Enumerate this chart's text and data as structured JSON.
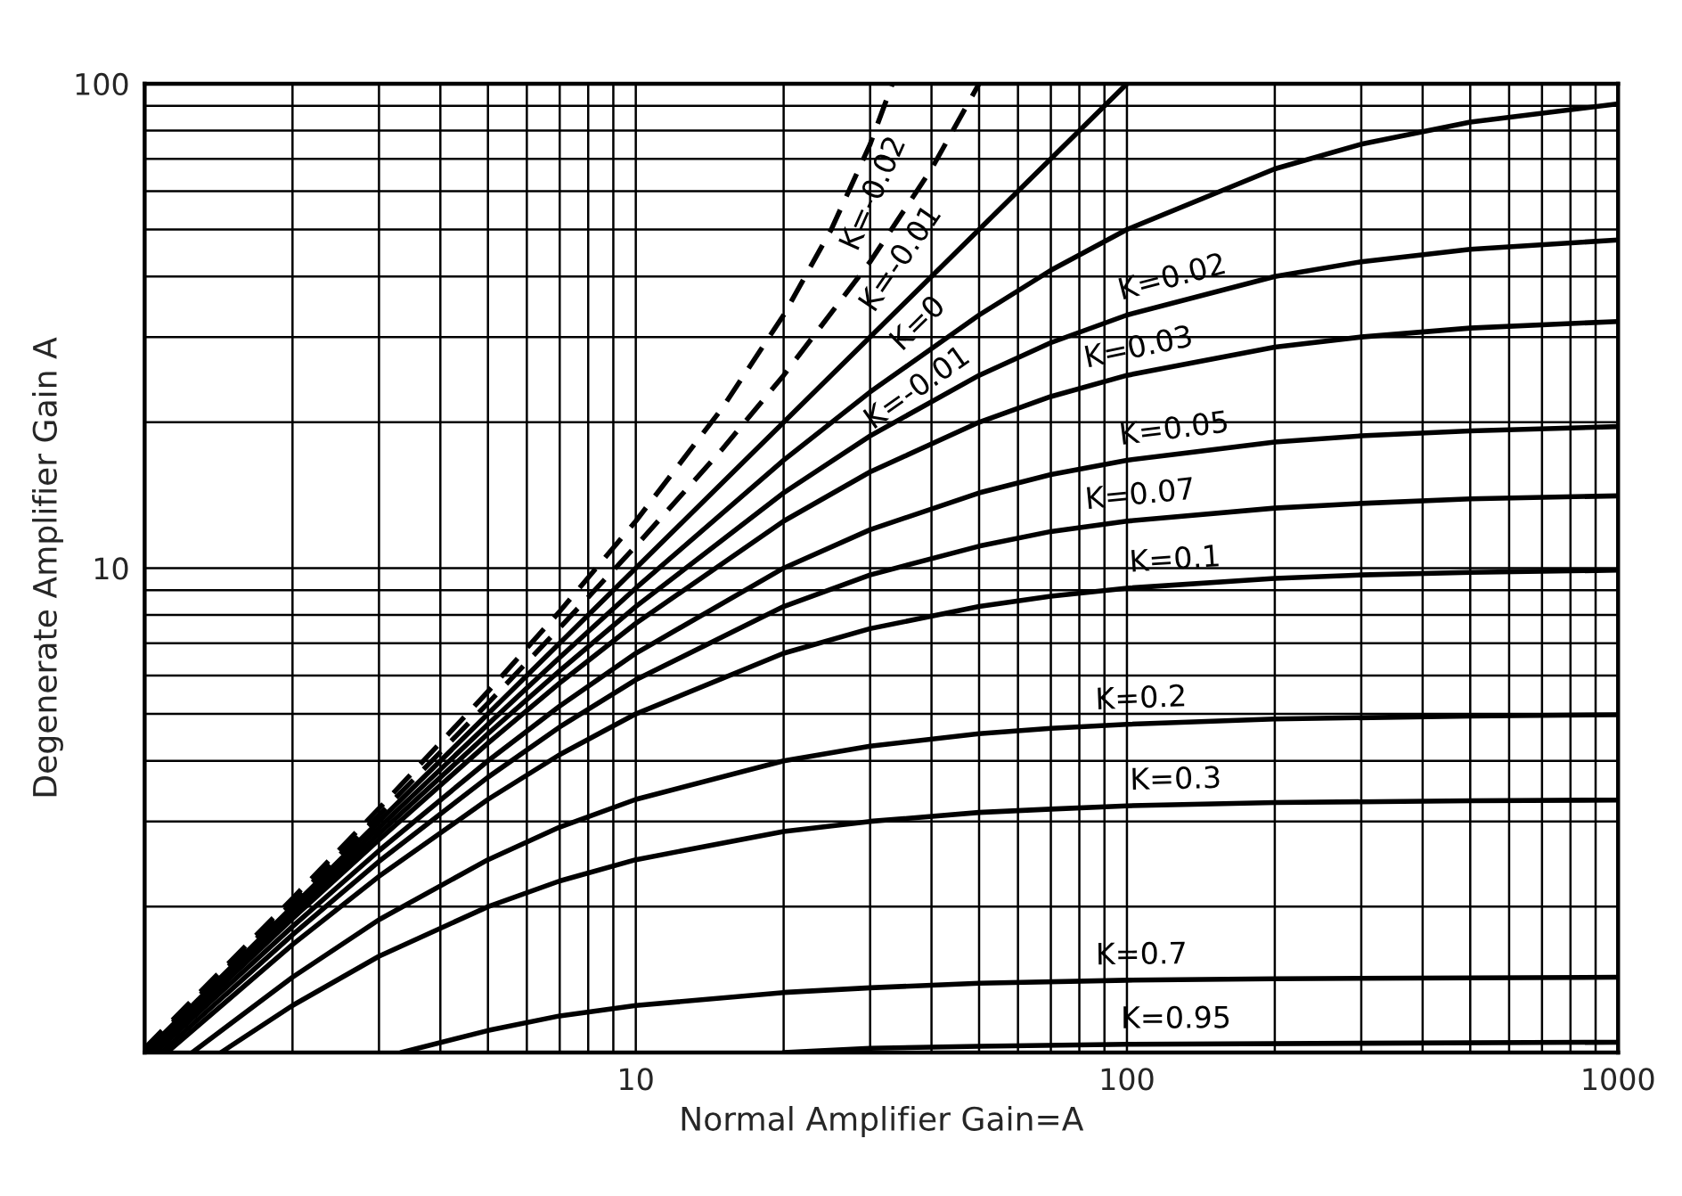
{
  "chart_data": {
    "type": "line",
    "xlabel": "Normal Amplifier Gain=A",
    "ylabel": "Degenerate Amplifier Gain A",
    "log": "xy",
    "grid": true,
    "legend": false,
    "xlim": [
      1,
      1000
    ],
    "ylim": [
      1,
      100
    ],
    "xticks": [
      {
        "value": 1,
        "label": null
      },
      {
        "value": 2,
        "label": null
      },
      {
        "value": 3,
        "label": null
      },
      {
        "value": 4,
        "label": null
      },
      {
        "value": 5,
        "label": null
      },
      {
        "value": 6,
        "label": null
      },
      {
        "value": 7,
        "label": null
      },
      {
        "value": 8,
        "label": null
      },
      {
        "value": 9,
        "label": null
      },
      10,
      {
        "value": 20,
        "label": null
      },
      {
        "value": 30,
        "label": null
      },
      {
        "value": 40,
        "label": null
      },
      {
        "value": 50,
        "label": null
      },
      {
        "value": 60,
        "label": null
      },
      {
        "value": 70,
        "label": null
      },
      {
        "value": 80,
        "label": null
      },
      {
        "value": 90,
        "label": null
      },
      100,
      {
        "value": 200,
        "label": null
      },
      {
        "value": 300,
        "label": null
      },
      {
        "value": 400,
        "label": null
      },
      {
        "value": 500,
        "label": null
      },
      {
        "value": 600,
        "label": null
      },
      {
        "value": 700,
        "label": null
      },
      {
        "value": 800,
        "label": null
      },
      {
        "value": 900,
        "label": null
      },
      1000
    ],
    "yticks": [
      {
        "value": 1,
        "label": null
      },
      {
        "value": 2,
        "label": null
      },
      {
        "value": 3,
        "label": null
      },
      {
        "value": 4,
        "label": null
      },
      {
        "value": 5,
        "label": null
      },
      {
        "value": 6,
        "label": null
      },
      {
        "value": 7,
        "label": null
      },
      {
        "value": 8,
        "label": null
      },
      {
        "value": 9,
        "label": null
      },
      10,
      {
        "value": 20,
        "label": null
      },
      {
        "value": 30,
        "label": null
      },
      {
        "value": 40,
        "label": null
      },
      {
        "value": 50,
        "label": null
      },
      {
        "value": 60,
        "label": null
      },
      {
        "value": 70,
        "label": null
      },
      {
        "value": 80,
        "label": null
      },
      {
        "value": 90,
        "label": null
      },
      100
    ],
    "series": [
      {
        "name": "K=-0.02",
        "color": "#000000",
        "line_style": "dashed",
        "x": [
          1,
          2,
          3,
          5,
          7,
          10,
          15,
          20,
          25,
          30,
          33.3
        ],
        "values": [
          1.02,
          2.08,
          3.19,
          5.56,
          8.14,
          12.5,
          21.4,
          33.3,
          50,
          75,
          100
        ]
      },
      {
        "name": "K=-0.01",
        "color": "#000000",
        "line_style": "dashed",
        "x": [
          1,
          2,
          3,
          5,
          7,
          10,
          15,
          20,
          30,
          40,
          50
        ],
        "values": [
          1.01,
          2.04,
          3.09,
          5.26,
          7.53,
          11.1,
          17.6,
          25,
          42.9,
          66.7,
          100
        ]
      },
      {
        "name": "K=0",
        "color": "#000000",
        "line_style": "solid",
        "x": [
          1,
          10,
          100
        ],
        "values": [
          1,
          10,
          100
        ]
      },
      {
        "name": "K=-0.01",
        "color": "#000000",
        "line_style": "solid",
        "x": [
          1.01,
          2,
          3,
          5,
          7,
          10,
          20,
          30,
          50,
          70,
          100,
          200,
          300,
          500,
          1000
        ],
        "values": [
          1,
          1.96,
          2.91,
          4.76,
          6.54,
          9.09,
          16.7,
          23.1,
          33.3,
          41.2,
          50,
          66.7,
          75,
          83.3,
          90.9
        ]
      },
      {
        "name": "K=0.02",
        "color": "#000000",
        "line_style": "solid",
        "x": [
          1.02,
          2,
          3,
          5,
          7,
          10,
          20,
          30,
          50,
          70,
          100,
          200,
          300,
          500,
          1000
        ],
        "values": [
          1,
          1.92,
          2.83,
          4.55,
          6.14,
          8.33,
          14.3,
          18.75,
          25,
          29.2,
          33.3,
          40,
          42.9,
          45.5,
          47.6
        ]
      },
      {
        "name": "K=0.03",
        "color": "#000000",
        "line_style": "solid",
        "x": [
          1.03,
          2,
          3,
          5,
          7,
          10,
          20,
          30,
          50,
          70,
          100,
          200,
          300,
          500,
          1000
        ],
        "values": [
          1,
          1.89,
          2.75,
          4.35,
          5.79,
          7.69,
          12.5,
          15.8,
          20,
          22.6,
          25,
          28.6,
          30,
          31.3,
          32.3
        ]
      },
      {
        "name": "K=0.05",
        "color": "#000000",
        "line_style": "solid",
        "x": [
          1.05,
          2,
          3,
          5,
          7,
          10,
          20,
          30,
          50,
          70,
          100,
          200,
          300,
          500,
          1000
        ],
        "values": [
          1,
          1.82,
          2.61,
          4,
          5.19,
          6.67,
          10,
          12,
          14.3,
          15.6,
          16.7,
          18.2,
          18.75,
          19.2,
          19.6
        ]
      },
      {
        "name": "K=0.07",
        "color": "#000000",
        "line_style": "solid",
        "x": [
          1.08,
          2,
          3,
          5,
          7,
          10,
          20,
          30,
          50,
          70,
          100,
          200,
          300,
          500,
          1000
        ],
        "values": [
          1,
          1.75,
          2.48,
          3.7,
          4.7,
          5.88,
          8.33,
          9.68,
          11.1,
          11.9,
          12.5,
          13.3,
          13.6,
          13.9,
          14.1
        ]
      },
      {
        "name": "K=0.1",
        "color": "#000000",
        "line_style": "solid",
        "x": [
          1.11,
          2,
          3,
          5,
          7,
          10,
          20,
          30,
          50,
          70,
          100,
          200,
          300,
          500,
          1000
        ],
        "values": [
          1,
          1.67,
          2.31,
          3.33,
          4.12,
          5,
          6.67,
          7.5,
          8.33,
          8.75,
          9.09,
          9.52,
          9.68,
          9.8,
          9.9
        ]
      },
      {
        "name": "K=0.2",
        "color": "#000000",
        "line_style": "solid",
        "x": [
          1.25,
          2,
          3,
          5,
          7,
          10,
          20,
          30,
          50,
          70,
          100,
          200,
          500,
          1000
        ],
        "values": [
          1,
          1.43,
          1.88,
          2.5,
          2.92,
          3.33,
          4,
          4.29,
          4.55,
          4.67,
          4.76,
          4.88,
          4.95,
          4.98
        ]
      },
      {
        "name": "K=0.3",
        "color": "#000000",
        "line_style": "solid",
        "x": [
          1.43,
          2,
          3,
          5,
          7,
          10,
          20,
          30,
          50,
          70,
          100,
          200,
          500,
          1000
        ],
        "values": [
          1,
          1.25,
          1.58,
          2,
          2.26,
          2.5,
          2.86,
          3,
          3.13,
          3.18,
          3.23,
          3.28,
          3.31,
          3.32
        ]
      },
      {
        "name": "K=0.7",
        "color": "#000000",
        "line_style": "solid",
        "x": [
          3.33,
          5,
          7,
          10,
          20,
          30,
          50,
          100,
          200,
          1000
        ],
        "values": [
          1,
          1.11,
          1.19,
          1.25,
          1.33,
          1.36,
          1.39,
          1.41,
          1.42,
          1.43
        ]
      },
      {
        "name": "K=0.95",
        "color": "#000000",
        "line_style": "solid",
        "x": [
          20,
          30,
          50,
          100,
          1000
        ],
        "values": [
          1,
          1.02,
          1.03,
          1.04,
          1.05
        ]
      }
    ]
  }
}
